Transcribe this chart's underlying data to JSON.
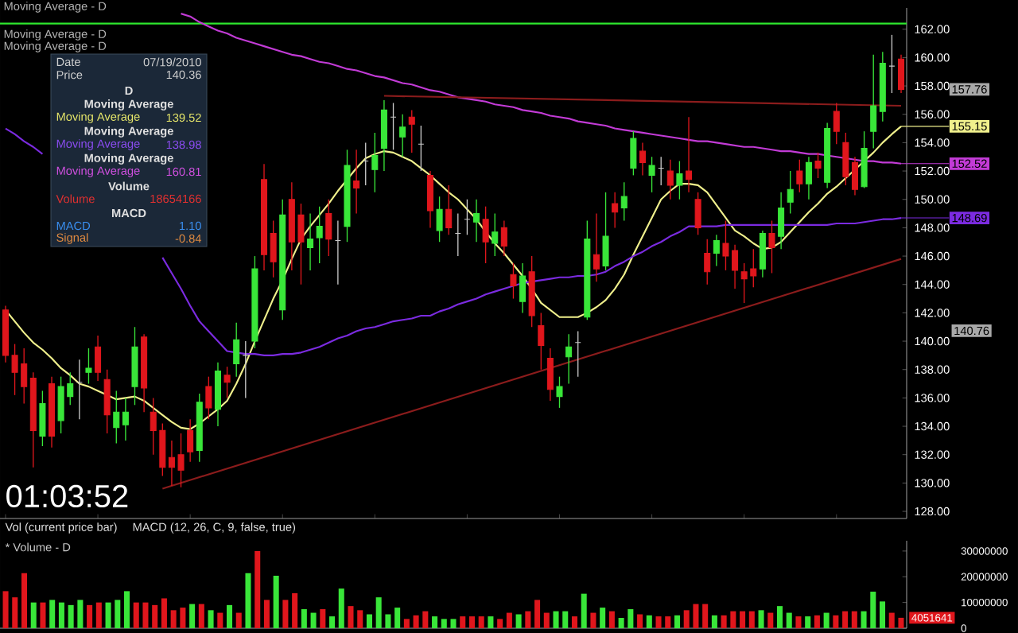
{
  "chart_data": [
    {
      "type": "candlestick",
      "categories": [
        null,
        null,
        null,
        null,
        null,
        null,
        null,
        null,
        null,
        null,
        null,
        null,
        null,
        null,
        null,
        null,
        null,
        null,
        null,
        null,
        null,
        null,
        null,
        null,
        null,
        null,
        null,
        null,
        null,
        null,
        null,
        null,
        null,
        null,
        null,
        null,
        null,
        null,
        null,
        null,
        null,
        null,
        null,
        null,
        null,
        null,
        null,
        null,
        null,
        null,
        null,
        null,
        null,
        null,
        null,
        null,
        null,
        null,
        null,
        null,
        null,
        null,
        null,
        null,
        null,
        null,
        null,
        null,
        null,
        null,
        null,
        null,
        null,
        null,
        null,
        null,
        null,
        null,
        null,
        null,
        null,
        null,
        null,
        null,
        null,
        null,
        null,
        null,
        null,
        null,
        null,
        null,
        null,
        null,
        null,
        null,
        null,
        null
      ],
      "ohlc": [
        [
          142.2,
          142.5,
          138.5,
          139.0
        ],
        [
          139.0,
          139.8,
          136.2,
          137.8
        ],
        [
          138.4,
          139.5,
          135.6,
          136.8
        ],
        [
          137.4,
          137.8,
          131.1,
          133.7
        ],
        [
          133.3,
          136.5,
          132.6,
          135.6
        ],
        [
          137.0,
          137.5,
          132.5,
          133.3
        ],
        [
          134.4,
          137.5,
          133.5,
          136.8
        ],
        [
          136.1,
          137.8,
          135.5,
          137.0
        ],
        [
          137.1,
          138.7,
          134.5,
          137.1
        ],
        [
          137.8,
          139.5,
          137.0,
          138.1
        ],
        [
          139.6,
          140.4,
          137.2,
          137.8
        ],
        [
          137.3,
          138.0,
          133.5,
          134.8
        ],
        [
          133.9,
          136.5,
          132.8,
          135.0
        ],
        [
          134.1,
          136.0,
          133.0,
          135.0
        ],
        [
          136.8,
          141.0,
          135.5,
          139.6
        ],
        [
          140.3,
          140.5,
          135.0,
          136.7
        ],
        [
          135.0,
          136.0,
          132.0,
          133.7
        ],
        [
          133.7,
          134.2,
          130.5,
          131.1
        ],
        [
          131.8,
          133.0,
          129.8,
          131.1
        ],
        [
          132.0,
          133.5,
          129.7,
          130.9
        ],
        [
          133.7,
          134.5,
          131.5,
          132.2
        ],
        [
          132.3,
          136.3,
          131.5,
          135.7
        ],
        [
          136.8,
          137.5,
          134.5,
          135.3
        ],
        [
          135.2,
          138.5,
          134.0,
          137.9
        ],
        [
          137.6,
          138.2,
          136.0,
          137.1
        ],
        [
          138.4,
          141.3,
          137.5,
          140.1
        ],
        [
          139.0,
          140.0,
          136.0,
          139.0
        ],
        [
          140.0,
          146.0,
          139.5,
          145.1
        ],
        [
          151.4,
          152.5,
          145.0,
          146.1
        ],
        [
          147.6,
          148.5,
          144.5,
          145.6
        ],
        [
          142.2,
          150.0,
          141.5,
          148.9
        ],
        [
          150.0,
          151.2,
          145.0,
          147.0
        ],
        [
          148.9,
          149.7,
          144.0,
          147.0
        ],
        [
          146.6,
          149.0,
          145.0,
          147.2
        ],
        [
          147.3,
          149.5,
          145.5,
          148.1
        ],
        [
          149.0,
          150.0,
          146.0,
          147.2
        ],
        [
          147.1,
          148.5,
          144.0,
          147.1
        ],
        [
          148.1,
          153.5,
          147.0,
          152.4
        ],
        [
          151.3,
          153.5,
          149.0,
          150.8
        ],
        [
          152.7,
          154.0,
          151.0,
          152.7
        ],
        [
          152.1,
          154.7,
          150.5,
          153.1
        ],
        [
          153.6,
          157.0,
          152.0,
          156.3
        ],
        [
          155.8,
          156.8,
          153.5,
          155.8
        ],
        [
          154.4,
          156.0,
          153.0,
          155.1
        ],
        [
          155.8,
          156.3,
          153.3,
          155.3
        ],
        [
          153.9,
          155.2,
          152.0,
          153.9
        ],
        [
          151.7,
          152.0,
          148.0,
          149.2
        ],
        [
          147.8,
          150.2,
          147.0,
          149.3
        ],
        [
          149.3,
          151.0,
          147.5,
          148.0
        ],
        [
          147.6,
          149.0,
          146.0,
          147.6
        ],
        [
          148.6,
          150.0,
          147.5,
          148.6
        ],
        [
          148.4,
          150.0,
          147.0,
          149.0
        ],
        [
          148.6,
          149.5,
          145.5,
          147.0
        ],
        [
          146.9,
          149.0,
          146.0,
          147.7
        ],
        [
          148.0,
          148.5,
          146.0,
          146.7
        ],
        [
          144.7,
          145.5,
          143.0,
          143.9
        ],
        [
          142.8,
          145.5,
          142.0,
          144.6
        ],
        [
          144.9,
          146.0,
          141.0,
          141.8
        ],
        [
          141.1,
          142.0,
          138.0,
          139.7
        ],
        [
          138.8,
          139.5,
          135.8,
          136.6
        ],
        [
          136.1,
          137.5,
          135.3,
          136.8
        ],
        [
          138.9,
          140.5,
          137.0,
          139.6
        ],
        [
          139.9,
          140.7,
          137.5,
          139.9
        ],
        [
          141.7,
          148.5,
          141.5,
          147.2
        ],
        [
          146.1,
          149.0,
          144.2,
          145.1
        ],
        [
          145.3,
          150.5,
          145.0,
          147.4
        ],
        [
          149.7,
          150.5,
          148.0,
          149.1
        ],
        [
          149.4,
          151.2,
          148.5,
          150.2
        ],
        [
          152.2,
          154.8,
          151.7,
          154.3
        ],
        [
          153.4,
          154.0,
          151.7,
          152.6
        ],
        [
          151.7,
          153.0,
          150.5,
          152.4
        ],
        [
          152.2,
          153.0,
          151.0,
          152.2
        ],
        [
          152.0,
          152.8,
          150.0,
          151.0
        ],
        [
          151.0,
          152.7,
          150.0,
          151.8
        ],
        [
          152.0,
          155.8,
          150.5,
          151.4
        ],
        [
          150.0,
          150.5,
          147.5,
          148.0
        ],
        [
          146.2,
          147.2,
          144.0,
          144.9
        ],
        [
          146.2,
          147.5,
          145.3,
          147.1
        ],
        [
          146.9,
          148.5,
          145.0,
          146.0
        ],
        [
          146.4,
          146.8,
          143.7,
          145.0
        ],
        [
          144.9,
          145.5,
          142.7,
          144.4
        ],
        [
          145.1,
          146.5,
          143.8,
          144.6
        ],
        [
          145.1,
          147.8,
          144.5,
          147.6
        ],
        [
          147.6,
          148.5,
          144.8,
          146.6
        ],
        [
          147.4,
          150.5,
          146.5,
          149.4
        ],
        [
          149.8,
          152.0,
          149.0,
          150.7
        ],
        [
          152.0,
          152.8,
          150.5,
          151.1
        ],
        [
          151.1,
          153.0,
          150.0,
          152.6
        ],
        [
          152.7,
          153.3,
          151.5,
          152.2
        ],
        [
          151.2,
          155.4,
          150.8,
          155.0
        ],
        [
          156.2,
          156.8,
          153.9,
          154.8
        ],
        [
          154.0,
          154.7,
          151.0,
          151.6
        ],
        [
          152.6,
          153.0,
          150.3,
          150.7
        ],
        [
          150.9,
          154.8,
          150.8,
          153.6
        ],
        [
          154.8,
          160.2,
          153.6,
          156.6
        ],
        [
          156.2,
          160.4,
          155.5,
          159.6
        ],
        [
          159.4,
          161.6,
          157.5,
          159.4
        ],
        [
          159.9,
          160.2,
          157.5,
          157.76
        ]
      ],
      "series": [
        {
          "type": "line",
          "color": "#f0f08c",
          "values": [
            142.2,
            141.4,
            140.6,
            139.9,
            139.4,
            138.8,
            138.1,
            137.6,
            137.0,
            136.8,
            136.5,
            136.2,
            135.9,
            136.0,
            136.1,
            135.8,
            135.3,
            134.8,
            134.3,
            133.9,
            133.8,
            134.2,
            134.7,
            135.2,
            135.8,
            137.0,
            138.4,
            140.0,
            141.5,
            143.0,
            144.3,
            145.8,
            147.2,
            148.1,
            148.9,
            149.7,
            150.6,
            151.4,
            152.2,
            152.9,
            153.2,
            153.4,
            153.3,
            153.0,
            152.7,
            152.2,
            151.7,
            151.1,
            150.5,
            150.0,
            149.3,
            148.6,
            147.7,
            146.9,
            146.2,
            145.4,
            144.6,
            143.7,
            142.7,
            142.2,
            141.7,
            141.7,
            141.7,
            142.0,
            142.4,
            142.9,
            143.7,
            144.7,
            146.1,
            147.4,
            148.7,
            150.0,
            150.6,
            151.1,
            151.1,
            151.0,
            150.5,
            149.6,
            148.7,
            147.8,
            147.4,
            146.9,
            146.5,
            146.6,
            147.0,
            147.7,
            148.4,
            149.1,
            149.7,
            150.4,
            150.9,
            151.5,
            152.1,
            152.7,
            153.3,
            154.0,
            154.6,
            155.15
          ],
          "value_labels": [
            null,
            null,
            null,
            null,
            null,
            null,
            null,
            null,
            null,
            null,
            null,
            null,
            null,
            null,
            null,
            null,
            null,
            null,
            null,
            null,
            null,
            null,
            null,
            null,
            null,
            null,
            null,
            null,
            null,
            null,
            null,
            null,
            null,
            null,
            null,
            null,
            null,
            null,
            null,
            null,
            null,
            null,
            null,
            null,
            null,
            null,
            null,
            null,
            null,
            null,
            null,
            null,
            null,
            null,
            null,
            null,
            null,
            null,
            null,
            null,
            null,
            null,
            null,
            null,
            null,
            null,
            null,
            null,
            null,
            null,
            null,
            null,
            null,
            null,
            null,
            null,
            null,
            null,
            null,
            null,
            null,
            null,
            null,
            null,
            null,
            null,
            null,
            null,
            null,
            null,
            null,
            null,
            null,
            null,
            null,
            null,
            null,
            "155.15"
          ]
        },
        {
          "type": "line",
          "color": "#7b2be0",
          "values": [
            155.0,
            154.6,
            154.1,
            153.7,
            153.2,
            null,
            null,
            null,
            null,
            null,
            null,
            null,
            null,
            null,
            null,
            null,
            null,
            null,
            null,
            null,
            null,
            null,
            null,
            null,
            null,
            null,
            null,
            null,
            null,
            null,
            null,
            null,
            null,
            null,
            null,
            null,
            null,
            null,
            null,
            null,
            null,
            null,
            null,
            null,
            null,
            null,
            null,
            null,
            null,
            null,
            null,
            null,
            null,
            null,
            null,
            null,
            null,
            null,
            null,
            null,
            null,
            null,
            null,
            null,
            null,
            null,
            null,
            null,
            null,
            null,
            null,
            null,
            null,
            null,
            null,
            null,
            null,
            null,
            null,
            null,
            null,
            null,
            null,
            null,
            null,
            null,
            null,
            null,
            null,
            null,
            null,
            null,
            null,
            null,
            null,
            null,
            null,
            null
          ]
        },
        {
          "type": "line",
          "color": "#7b2be0",
          "values": [
            null,
            null,
            null,
            null,
            null,
            null,
            null,
            null,
            null,
            null,
            null,
            null,
            null,
            null,
            null,
            null,
            null,
            145.9,
            144.8,
            143.7,
            142.5,
            141.4,
            140.7,
            140.0,
            139.3,
            139.2,
            139.1,
            139.1,
            139.0,
            139.0,
            139.1,
            139.1,
            139.2,
            139.4,
            139.6,
            139.9,
            140.2,
            140.4,
            140.7,
            140.9,
            141.0,
            141.2,
            141.4,
            141.5,
            141.6,
            141.8,
            141.8,
            142.1,
            142.3,
            142.6,
            142.8,
            143.0,
            143.3,
            143.5,
            143.7,
            143.9,
            144.1,
            144.2,
            144.3,
            144.4,
            144.5,
            144.5,
            144.6,
            144.6,
            144.7,
            144.9,
            145.3,
            145.6,
            146.0,
            146.3,
            146.7,
            147.0,
            147.4,
            147.7,
            148.1,
            148.1,
            148.1,
            148.1,
            148.2,
            148.2,
            148.2,
            148.2,
            148.2,
            148.2,
            148.2,
            148.2,
            148.2,
            148.2,
            148.2,
            148.2,
            148.3,
            148.3,
            148.3,
            148.4,
            148.5,
            148.6,
            148.6,
            148.69
          ],
          "value_labels": [
            null,
            null,
            null,
            null,
            null,
            null,
            null,
            null,
            null,
            null,
            null,
            null,
            null,
            null,
            null,
            null,
            null,
            null,
            null,
            null,
            null,
            null,
            null,
            null,
            null,
            null,
            null,
            null,
            null,
            null,
            null,
            null,
            null,
            null,
            null,
            null,
            null,
            null,
            null,
            null,
            null,
            null,
            null,
            null,
            null,
            null,
            null,
            null,
            null,
            null,
            null,
            null,
            null,
            null,
            null,
            null,
            null,
            null,
            null,
            null,
            null,
            null,
            null,
            null,
            null,
            null,
            null,
            null,
            null,
            null,
            null,
            null,
            null,
            null,
            null,
            null,
            null,
            null,
            null,
            null,
            null,
            null,
            null,
            null,
            null,
            null,
            null,
            null,
            null,
            null,
            null,
            null,
            null,
            null,
            null,
            null,
            null,
            "148.69"
          ]
        },
        {
          "type": "line",
          "color": "#c23bd6",
          "values": [
            null,
            null,
            null,
            null,
            null,
            null,
            null,
            null,
            null,
            null,
            null,
            null,
            null,
            null,
            null,
            null,
            null,
            null,
            null,
            163.1,
            162.9,
            162.5,
            162.2,
            161.9,
            161.7,
            161.4,
            161.2,
            161.0,
            160.8,
            160.6,
            160.4,
            160.2,
            160.1,
            159.9,
            159.7,
            159.6,
            159.4,
            159.2,
            159.1,
            158.9,
            158.7,
            158.6,
            158.4,
            158.2,
            158.1,
            157.9,
            157.7,
            157.6,
            157.4,
            157.2,
            157.1,
            157.0,
            156.9,
            156.7,
            156.6,
            156.5,
            156.3,
            156.2,
            156.1,
            155.9,
            155.8,
            155.7,
            155.5,
            155.4,
            155.3,
            155.2,
            155.0,
            154.9,
            154.8,
            154.7,
            154.6,
            154.5,
            154.4,
            154.3,
            154.2,
            154.1,
            154.1,
            154.0,
            153.9,
            153.8,
            153.7,
            153.7,
            153.6,
            153.5,
            153.4,
            153.4,
            153.3,
            153.2,
            153.2,
            153.1,
            153.0,
            152.9,
            152.8,
            152.7,
            152.7,
            152.6,
            152.6,
            152.52
          ],
          "value_labels": [
            null,
            null,
            null,
            null,
            null,
            null,
            null,
            null,
            null,
            null,
            null,
            null,
            null,
            null,
            null,
            null,
            null,
            null,
            null,
            null,
            null,
            null,
            null,
            null,
            null,
            null,
            null,
            null,
            null,
            null,
            null,
            null,
            null,
            null,
            null,
            null,
            null,
            null,
            null,
            null,
            null,
            null,
            null,
            null,
            null,
            null,
            null,
            null,
            null,
            null,
            null,
            null,
            null,
            null,
            null,
            null,
            null,
            null,
            null,
            null,
            null,
            null,
            null,
            null,
            null,
            null,
            null,
            null,
            null,
            null,
            null,
            null,
            null,
            null,
            null,
            null,
            null,
            null,
            null,
            null,
            null,
            null,
            null,
            null,
            null,
            null,
            null,
            null,
            null,
            null,
            null,
            null,
            null,
            null,
            null,
            null,
            null,
            "152.52"
          ]
        },
        {
          "type": "line",
          "color": "#8b1c1c",
          "values": [
            null,
            null,
            null,
            null,
            null,
            null,
            null,
            null,
            null,
            null,
            null,
            null,
            null,
            null,
            null,
            null,
            null,
            129.6,
            null,
            null,
            null,
            null,
            null,
            null,
            null,
            null,
            null,
            null,
            null,
            null,
            null,
            null,
            null,
            null,
            null,
            null,
            null,
            null,
            null,
            null,
            null,
            null,
            null,
            null,
            null,
            null,
            null,
            null,
            null,
            null,
            null,
            null,
            null,
            null,
            null,
            null,
            null,
            null,
            null,
            null,
            null,
            null,
            null,
            null,
            null,
            null,
            null,
            null,
            null,
            null,
            null,
            null,
            null,
            null,
            null,
            null,
            null,
            null,
            null,
            null,
            null,
            null,
            null,
            null,
            null,
            null,
            null,
            null,
            null,
            null,
            null,
            null,
            null,
            null,
            null,
            null,
            null,
            145.8
          ]
        },
        {
          "type": "line",
          "color": "#8b1c1c",
          "values": [
            null,
            null,
            null,
            null,
            null,
            null,
            null,
            null,
            null,
            null,
            null,
            null,
            null,
            null,
            null,
            null,
            null,
            null,
            null,
            null,
            null,
            null,
            null,
            null,
            null,
            null,
            null,
            null,
            null,
            null,
            null,
            null,
            null,
            null,
            null,
            null,
            null,
            null,
            null,
            null,
            null,
            157.3,
            null,
            null,
            null,
            null,
            null,
            null,
            null,
            null,
            null,
            null,
            null,
            null,
            null,
            null,
            null,
            null,
            null,
            null,
            null,
            null,
            null,
            null,
            null,
            null,
            null,
            null,
            null,
            null,
            null,
            null,
            null,
            null,
            null,
            null,
            null,
            null,
            null,
            null,
            null,
            null,
            null,
            null,
            null,
            null,
            null,
            null,
            null,
            null,
            null,
            null,
            null,
            null,
            null,
            null,
            null,
            156.6
          ]
        }
      ],
      "ylim": [
        127.5,
        163.5
      ],
      "yticks": [
        {
          "value": 128,
          "label": "128.00"
        },
        {
          "value": 130,
          "label": "130.00"
        },
        {
          "value": 132,
          "label": "132.00"
        },
        {
          "value": 134,
          "label": "134.00"
        },
        {
          "value": 136,
          "label": "136.00"
        },
        {
          "value": 138,
          "label": "138.00"
        },
        {
          "value": 140,
          "label": "140.00"
        },
        {
          "value": 142,
          "label": "142.00"
        },
        {
          "value": 144,
          "label": "144.00"
        },
        {
          "value": 146,
          "label": "146.00"
        },
        {
          "value": 148,
          "label": "148.00"
        },
        {
          "value": 150,
          "label": "150.00"
        },
        {
          "value": 152,
          "label": "152.00"
        },
        {
          "value": 154,
          "label": "154.00"
        },
        {
          "value": 156,
          "label": "156.00"
        },
        {
          "value": 158,
          "label": "158.00"
        },
        {
          "value": 160,
          "label": "160.00"
        },
        {
          "value": 162,
          "label": "162.00"
        }
      ],
      "tick_labels": "y",
      "ref_lines": [
        {
          "axis": "y",
          "value": 162.4,
          "color": "#2ee82e"
        }
      ],
      "annotations": [
        "Moving Average - D",
        "Moving Average - D",
        "Moving Average - D",
        "Date",
        "07/19/2010",
        "Price",
        "140.36",
        "D",
        "Moving Average",
        "Moving Average",
        "139.52",
        "Moving Average",
        "Moving Average",
        "138.98",
        "Moving Average",
        "Moving Average",
        "160.81",
        "Volume",
        "Volume",
        "18654166",
        "MACD",
        "MACD",
        "1.10",
        "Signal",
        "-0.84",
        "01:03:52",
        "140.76"
      ],
      "value_labels": [
        null,
        null,
        null,
        null,
        null,
        null,
        null,
        null,
        null,
        null,
        null,
        null,
        null,
        null,
        null,
        null,
        null,
        null,
        null,
        null,
        null,
        null,
        null,
        null,
        null,
        null,
        null,
        null,
        null,
        null,
        null,
        null,
        null,
        null,
        null,
        null,
        null,
        null,
        null,
        null,
        null,
        null,
        null,
        null,
        null,
        null,
        null,
        null,
        null,
        null,
        null,
        null,
        null,
        null,
        null,
        null,
        null,
        null,
        null,
        null,
        null,
        null,
        null,
        null,
        null,
        null,
        null,
        null,
        null,
        null,
        null,
        null,
        null,
        null,
        null,
        null,
        null,
        null,
        null,
        null,
        null,
        null,
        null,
        null,
        null,
        null,
        null,
        null,
        null,
        null,
        null,
        null,
        null,
        null,
        null,
        null,
        null,
        "157.76"
      ]
    },
    {
      "type": "bar",
      "title": "* Volume - D",
      "categories": [
        null,
        null,
        null,
        null,
        null,
        null,
        null,
        null,
        null,
        null,
        null,
        null,
        null,
        null,
        null,
        null,
        null,
        null,
        null,
        null,
        null,
        null,
        null,
        null,
        null,
        null,
        null,
        null,
        null,
        null,
        null,
        null,
        null,
        null,
        null,
        null,
        null,
        null,
        null,
        null,
        null,
        null,
        null,
        null,
        null,
        null,
        null,
        null,
        null,
        null,
        null,
        null,
        null,
        null,
        null,
        null,
        null,
        null,
        null,
        null,
        null,
        null,
        null,
        null,
        null,
        null,
        null,
        null,
        null,
        null,
        null,
        null,
        null,
        null,
        null,
        null,
        null,
        null,
        null,
        null,
        null,
        null,
        null,
        null,
        null,
        null,
        null,
        null,
        null,
        null,
        null,
        null,
        null,
        null,
        null,
        null,
        null
      ],
      "values": [
        14400000,
        12000000,
        21400000,
        10000000,
        10000000,
        11000000,
        10000000,
        9000000,
        11000000,
        9000000,
        10000000,
        10000000,
        11000000,
        14400000,
        10000000,
        10000000,
        9000000,
        11600000,
        7000000,
        8000000,
        9400000,
        9400000,
        7000000,
        6000000,
        9000000,
        6000000,
        21400000,
        30000000,
        11000000,
        20400000,
        11000000,
        13600000,
        7400000,
        6000000,
        7400000,
        4600000,
        15400000,
        8600000,
        7000000,
        5400000,
        12000000,
        5400000,
        8000000,
        3600000,
        5000000,
        6600000,
        4600000,
        3600000,
        3600000,
        4600000,
        4600000,
        4600000,
        4600000,
        3600000,
        6000000,
        5400000,
        6600000,
        11000000,
        6000000,
        6600000,
        6600000,
        4600000,
        13400000,
        6000000,
        8000000,
        6600000,
        4000000,
        7400000,
        5400000,
        5000000,
        4600000,
        4600000,
        5000000,
        7000000,
        9400000,
        9400000,
        5000000,
        5000000,
        6600000,
        6600000,
        6600000,
        7000000,
        6000000,
        8600000,
        6000000,
        4600000,
        4600000,
        5000000,
        6000000,
        5000000,
        6600000,
        6600000,
        6600000,
        14200000,
        10400000,
        6000000,
        4051641
      ],
      "colors": [
        "#e0161c",
        "#e0161c",
        "#e0161c",
        "#39e639",
        "#e0161c",
        "#39e639",
        "#39e639",
        "#39e639",
        "#39e639",
        "#e0161c",
        "#e0161c",
        "#39e639",
        "#39e639",
        "#39e639",
        "#e0161c",
        "#e0161c",
        "#e0161c",
        "#e0161c",
        "#e0161c",
        "#e0161c",
        "#39e639",
        "#e0161c",
        "#39e639",
        "#e0161c",
        "#39e639",
        "#e0161c",
        "#39e639",
        "#e0161c",
        "#e0161c",
        "#39e639",
        "#e0161c",
        "#e0161c",
        "#39e639",
        "#39e639",
        "#e0161c",
        "#39e639",
        "#39e639",
        "#e0161c",
        "#e0161c",
        "#39e639",
        "#39e639",
        "#39e639",
        "#39e639",
        "#e0161c",
        "#e0161c",
        "#e0161c",
        "#39e639",
        "#39e639",
        "#39e639",
        "#e0161c",
        "#e0161c",
        "#e0161c",
        "#39e639",
        "#e0161c",
        "#e0161c",
        "#39e639",
        "#e0161c",
        "#e0161c",
        "#e0161c",
        "#39e639",
        "#39e639",
        "#e0161c",
        "#39e639",
        "#e0161c",
        "#39e639",
        "#e0161c",
        "#39e639",
        "#39e639",
        "#e0161c",
        "#39e639",
        "#e0161c",
        "#e0161c",
        "#39e639",
        "#e0161c",
        "#e0161c",
        "#e0161c",
        "#39e639",
        "#e0161c",
        "#e0161c",
        "#e0161c",
        "#e0161c",
        "#39e639",
        "#e0161c",
        "#39e639",
        "#39e639",
        "#e0161c",
        "#39e639",
        "#e0161c",
        "#39e639",
        "#e0161c",
        "#e0161c",
        "#e0161c",
        "#39e639",
        "#39e639",
        "#39e639",
        "#e0161c",
        "#e0161c"
      ],
      "ylim": [
        0,
        34000000
      ],
      "yticks": [
        0,
        10000000,
        20000000,
        30000000
      ],
      "tick_labels": "y",
      "value_labels": [
        null,
        null,
        null,
        null,
        null,
        null,
        null,
        null,
        null,
        null,
        null,
        null,
        null,
        null,
        null,
        null,
        null,
        null,
        null,
        null,
        null,
        null,
        null,
        null,
        null,
        null,
        null,
        null,
        null,
        null,
        null,
        null,
        null,
        null,
        null,
        null,
        null,
        null,
        null,
        null,
        null,
        null,
        null,
        null,
        null,
        null,
        null,
        null,
        null,
        null,
        null,
        null,
        null,
        null,
        null,
        null,
        null,
        null,
        null,
        null,
        null,
        null,
        null,
        null,
        null,
        null,
        null,
        null,
        null,
        null,
        null,
        null,
        null,
        null,
        null,
        null,
        null,
        null,
        null,
        null,
        null,
        null,
        null,
        null,
        null,
        null,
        null,
        null,
        null,
        null,
        null,
        null,
        null,
        null,
        null,
        null,
        "4051641"
      ],
      "annotations": [
        "Vol (current price bar)",
        "MACD (12, 26, C, 9, false, true)"
      ]
    }
  ]
}
